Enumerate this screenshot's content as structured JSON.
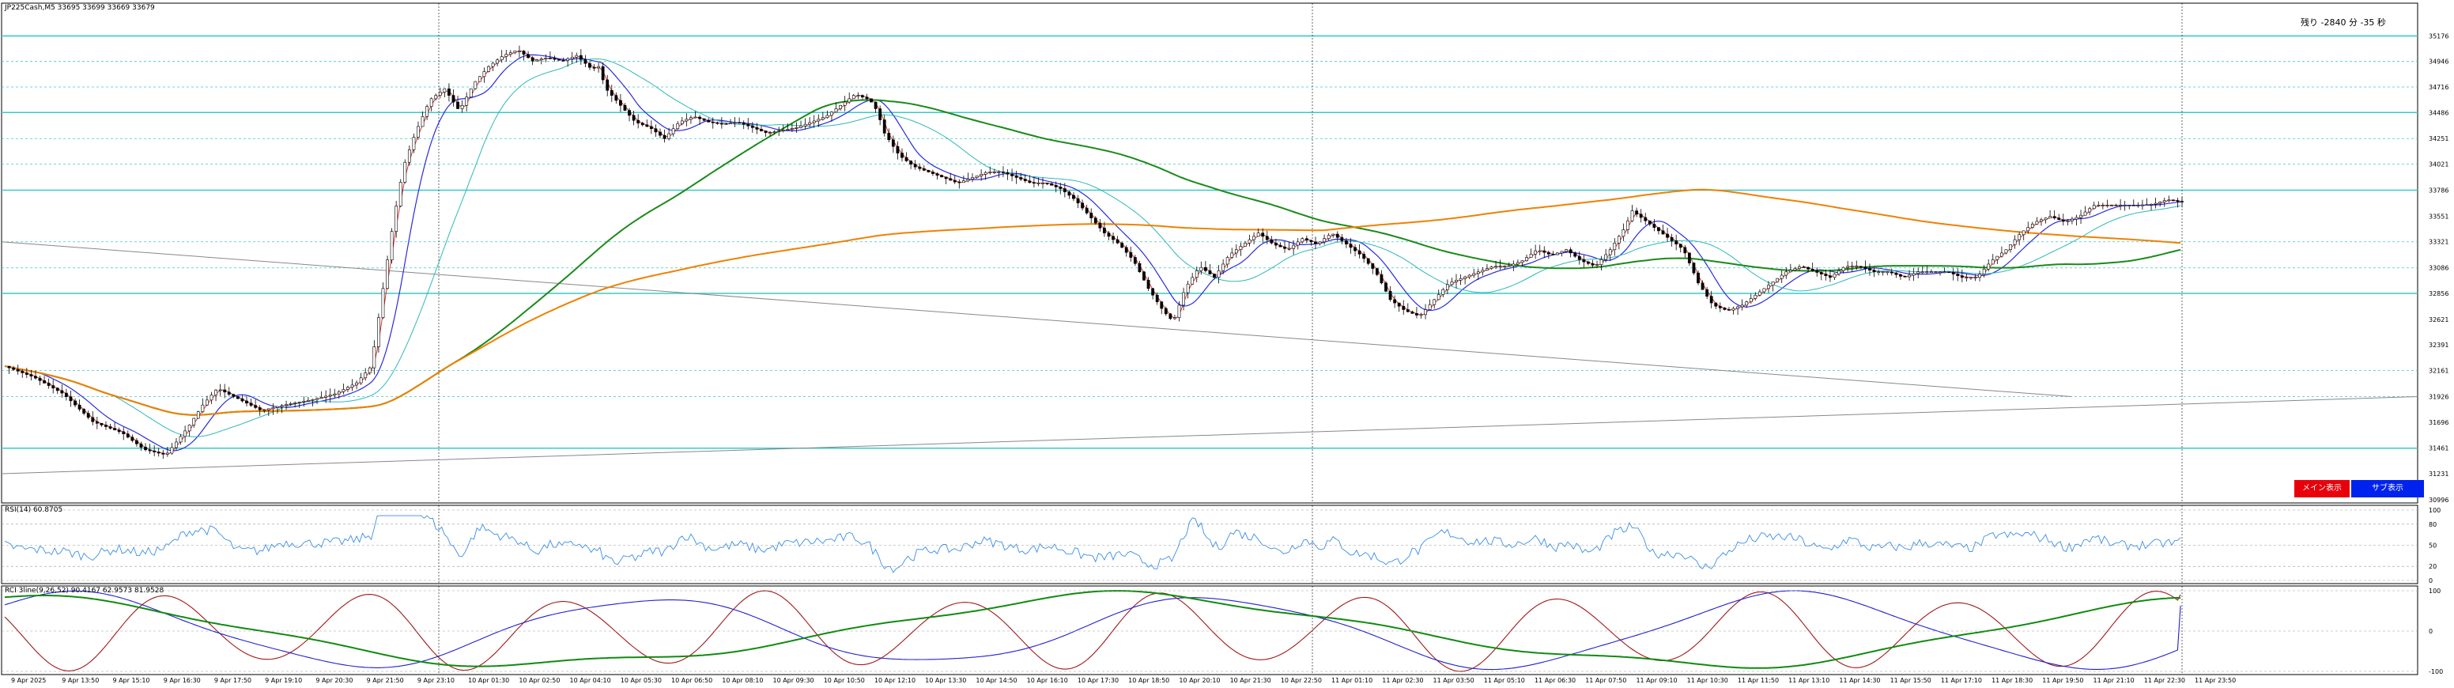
{
  "header": {
    "symbol_line": "JP225Cash,M5  33695 33699 33669 33679",
    "countdown": "残り -2840 分 -35 秒"
  },
  "buttons": {
    "main_label": "メイン表示",
    "sub_label": "サブ表示"
  },
  "colors": {
    "bull_candle": "#000000",
    "bear_candle": "#000000",
    "ma_fast": "#e03030",
    "ma_mid": "#2a2ae0",
    "ma_slow": "#2fb8b8",
    "ma_long": "#1a8a1a",
    "ma_xlong": "#f08000",
    "level_line": "#3cc8c8",
    "trendline": "#888888",
    "rsi_line": "#3a8ee6",
    "rci_short": "#a01818",
    "rci_mid": "#2020d0",
    "rci_long": "#108a10",
    "btn_main": "#e8000b",
    "btn_sub": "#0022ee"
  },
  "chart_data": [
    {
      "type": "candlestick",
      "title": "JP225Cash,M5",
      "ohlc_last": {
        "open": 33695,
        "high": 33699,
        "low": 33669,
        "close": 33679
      },
      "x_tick_labels": [
        "9 Apr 2025",
        "9 Apr 13:50",
        "9 Apr 15:10",
        "9 Apr 16:30",
        "9 Apr 17:50",
        "9 Apr 19:10",
        "9 Apr 20:30",
        "9 Apr 21:50",
        "9 Apr 23:10",
        "10 Apr 01:30",
        "10 Apr 02:50",
        "10 Apr 04:10",
        "10 Apr 05:30",
        "10 Apr 06:50",
        "10 Apr 08:10",
        "10 Apr 09:30",
        "10 Apr 10:50",
        "10 Apr 12:10",
        "10 Apr 13:30",
        "10 Apr 14:50",
        "10 Apr 16:10",
        "10 Apr 17:30",
        "10 Apr 18:50",
        "10 Apr 20:10",
        "10 Apr 21:30",
        "10 Apr 22:50",
        "11 Apr 01:10",
        "11 Apr 02:30",
        "11 Apr 03:50",
        "11 Apr 05:10",
        "11 Apr 06:30",
        "11 Apr 07:50",
        "11 Apr 09:10",
        "11 Apr 10:30",
        "11 Apr 11:50",
        "11 Apr 13:10",
        "11 Apr 14:30",
        "11 Apr 15:50",
        "11 Apr 17:10",
        "11 Apr 18:30",
        "11 Apr 19:50",
        "11 Apr 21:10",
        "11 Apr 22:30",
        "11 Apr 23:50"
      ],
      "y_tick_labels": [
        "35176",
        "34946",
        "34716",
        "34486",
        "34251",
        "34021",
        "33786",
        "33551",
        "33321",
        "33086",
        "32856",
        "32621",
        "32391",
        "32161",
        "31926",
        "31696",
        "31461",
        "31231",
        "30996"
      ],
      "ylim": [
        30996,
        35400
      ],
      "price_series_points": [
        [
          0,
          32200
        ],
        [
          20,
          32100
        ],
        [
          40,
          31950
        ],
        [
          60,
          31700
        ],
        [
          80,
          31600
        ],
        [
          95,
          31450
        ],
        [
          110,
          31400
        ],
        [
          125,
          31650
        ],
        [
          135,
          31850
        ],
        [
          145,
          32000
        ],
        [
          160,
          31900
        ],
        [
          175,
          31800
        ],
        [
          190,
          31850
        ],
        [
          210,
          31900
        ],
        [
          225,
          31950
        ],
        [
          240,
          32050
        ],
        [
          250,
          32200
        ],
        [
          258,
          32900
        ],
        [
          265,
          33500
        ],
        [
          272,
          34000
        ],
        [
          280,
          34300
        ],
        [
          290,
          34600
        ],
        [
          300,
          34700
        ],
        [
          310,
          34500
        ],
        [
          320,
          34750
        ],
        [
          330,
          34900
        ],
        [
          340,
          35000
        ],
        [
          350,
          35050
        ],
        [
          360,
          34950
        ],
        [
          370,
          34980
        ],
        [
          380,
          34950
        ],
        [
          390,
          35000
        ],
        [
          400,
          34880
        ],
        [
          405,
          34900
        ],
        [
          410,
          34700
        ],
        [
          420,
          34550
        ],
        [
          430,
          34400
        ],
        [
          440,
          34350
        ],
        [
          450,
          34250
        ],
        [
          460,
          34400
        ],
        [
          470,
          34450
        ],
        [
          480,
          34400
        ],
        [
          490,
          34380
        ],
        [
          500,
          34400
        ],
        [
          510,
          34350
        ],
        [
          520,
          34300
        ],
        [
          540,
          34350
        ],
        [
          560,
          34450
        ],
        [
          570,
          34550
        ],
        [
          580,
          34650
        ],
        [
          590,
          34600
        ],
        [
          595,
          34500
        ],
        [
          600,
          34300
        ],
        [
          610,
          34100
        ],
        [
          620,
          34000
        ],
        [
          630,
          33950
        ],
        [
          640,
          33900
        ],
        [
          650,
          33850
        ],
        [
          660,
          33900
        ],
        [
          670,
          33950
        ],
        [
          680,
          33950
        ],
        [
          690,
          33900
        ],
        [
          700,
          33850
        ],
        [
          710,
          33850
        ],
        [
          720,
          33800
        ],
        [
          730,
          33700
        ],
        [
          740,
          33550
        ],
        [
          750,
          33400
        ],
        [
          760,
          33300
        ],
        [
          770,
          33150
        ],
        [
          780,
          32900
        ],
        [
          790,
          32700
        ],
        [
          797,
          32600
        ],
        [
          805,
          32900
        ],
        [
          815,
          33100
        ],
        [
          825,
          33000
        ],
        [
          835,
          33200
        ],
        [
          845,
          33300
        ],
        [
          855,
          33400
        ],
        [
          865,
          33300
        ],
        [
          875,
          33250
        ],
        [
          885,
          33350
        ],
        [
          895,
          33300
        ],
        [
          905,
          33400
        ],
        [
          915,
          33300
        ],
        [
          925,
          33200
        ],
        [
          935,
          33050
        ],
        [
          945,
          32800
        ],
        [
          955,
          32700
        ],
        [
          965,
          32650
        ],
        [
          975,
          32800
        ],
        [
          985,
          32950
        ],
        [
          995,
          33000
        ],
        [
          1005,
          33050
        ],
        [
          1015,
          33100
        ],
        [
          1025,
          33100
        ],
        [
          1035,
          33150
        ],
        [
          1045,
          33250
        ],
        [
          1055,
          33200
        ],
        [
          1065,
          33250
        ],
        [
          1075,
          33150
        ],
        [
          1085,
          33100
        ],
        [
          1095,
          33250
        ],
        [
          1105,
          33450
        ],
        [
          1110,
          33600
        ],
        [
          1115,
          33550
        ],
        [
          1125,
          33450
        ],
        [
          1135,
          33350
        ],
        [
          1145,
          33250
        ],
        [
          1155,
          32950
        ],
        [
          1165,
          32750
        ],
        [
          1175,
          32700
        ],
        [
          1185,
          32750
        ],
        [
          1195,
          32850
        ],
        [
          1205,
          32950
        ],
        [
          1215,
          33050
        ],
        [
          1225,
          33100
        ],
        [
          1235,
          33050
        ],
        [
          1245,
          33000
        ],
        [
          1255,
          33100
        ],
        [
          1265,
          33100
        ],
        [
          1275,
          33050
        ],
        [
          1285,
          33050
        ],
        [
          1295,
          33000
        ],
        [
          1305,
          33050
        ],
        [
          1315,
          33050
        ],
        [
          1325,
          33050
        ],
        [
          1335,
          33000
        ],
        [
          1345,
          33000
        ],
        [
          1355,
          33150
        ],
        [
          1365,
          33250
        ],
        [
          1375,
          33400
        ],
        [
          1385,
          33500
        ],
        [
          1395,
          33550
        ],
        [
          1405,
          33500
        ],
        [
          1415,
          33550
        ],
        [
          1425,
          33650
        ],
        [
          1435,
          33650
        ],
        [
          1445,
          33650
        ],
        [
          1455,
          33650
        ],
        [
          1465,
          33660
        ],
        [
          1475,
          33700
        ],
        [
          1485,
          33680
        ]
      ],
      "horizontal_levels": [
        35176,
        34946,
        34716,
        34486,
        34251,
        34021,
        33786,
        33321,
        33086,
        32856,
        32161,
        31926,
        31461
      ],
      "rsi": {
        "label": "RSI(14) 60.8705",
        "value": 60.8705,
        "levels": [
          100,
          80,
          50,
          20,
          0
        ],
        "ylim": [
          0,
          100
        ]
      },
      "rci": {
        "label": "RCI 3line(9,26,52) 90.4167 62.9573 81.9528",
        "values": [
          90.4167,
          62.9573,
          81.9528
        ],
        "levels": [
          100,
          0,
          -100
        ],
        "ylim": [
          -100,
          100
        ]
      }
    }
  ]
}
